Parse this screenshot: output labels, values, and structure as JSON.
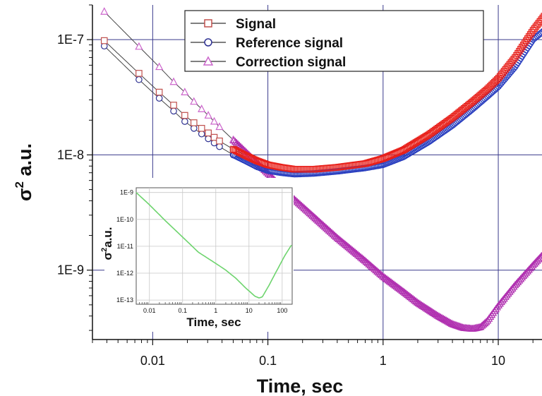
{
  "chart_data": [
    {
      "type": "scatter",
      "xscale": "log",
      "yscale": "log",
      "xlim": [
        0.003,
        25
      ],
      "ylim": [
        2.5e-10,
        2e-07
      ],
      "xlabel": "Time, sec",
      "ylabel_base": "σ",
      "ylabel_sup": "2",
      "ylabel_rest": " a.u.",
      "xticks": [
        {
          "value": 0.01,
          "label": "0.01"
        },
        {
          "value": 0.1,
          "label": "0.1"
        },
        {
          "value": 1,
          "label": "1"
        },
        {
          "value": 10,
          "label": "10"
        }
      ],
      "yticks": [
        {
          "value": 1e-07,
          "label": "1E-7"
        },
        {
          "value": 1e-08,
          "label": "1E-8"
        },
        {
          "value": 1e-09,
          "label": "1E-9"
        }
      ],
      "grid": true,
      "legend_position": "top",
      "series": [
        {
          "name": "Signal",
          "marker": "square",
          "color": "#c0504d",
          "dense_color": "#e8201a",
          "x": [
            0.0038,
            0.0076,
            0.0114,
            0.0152,
            0.019,
            0.0228,
            0.0266,
            0.0304,
            0.0342,
            0.038,
            0.05,
            0.065,
            0.08,
            0.1,
            0.13,
            0.17,
            0.25,
            0.4,
            0.7,
            1.0,
            1.5,
            2.5,
            4,
            6,
            8,
            10,
            14,
            20,
            25
          ],
          "y": [
            9.8e-08,
            5.1e-08,
            3.5e-08,
            2.7e-08,
            2.2e-08,
            1.9e-08,
            1.7e-08,
            1.55e-08,
            1.42e-08,
            1.32e-08,
            1.12e-08,
            9.8e-09,
            8.9e-09,
            8.2e-09,
            7.8e-09,
            7.5e-09,
            7.5e-09,
            7.8e-09,
            8.4e-09,
            9.3e-09,
            1.1e-08,
            1.5e-08,
            2.1e-08,
            2.9e-08,
            3.7e-08,
            4.6e-08,
            7e-08,
            1.2e-07,
            1.6e-07
          ]
        },
        {
          "name": "Reference signal",
          "marker": "circle",
          "color": "#2e3192",
          "dense_color": "#2a3fbf",
          "x": [
            0.0038,
            0.0076,
            0.0114,
            0.0152,
            0.019,
            0.0228,
            0.0266,
            0.0304,
            0.0342,
            0.038,
            0.05,
            0.065,
            0.08,
            0.1,
            0.13,
            0.17,
            0.25,
            0.4,
            0.7,
            1.0,
            1.5,
            2.5,
            4,
            6,
            8,
            10,
            14,
            20,
            25
          ],
          "y": [
            8.8e-08,
            4.5e-08,
            3.1e-08,
            2.4e-08,
            1.95e-08,
            1.7e-08,
            1.52e-08,
            1.38e-08,
            1.27e-08,
            1.18e-08,
            1e-08,
            8.8e-09,
            7.9e-09,
            7.3e-09,
            7e-09,
            6.8e-09,
            6.9e-09,
            7.2e-09,
            7.7e-09,
            8.2e-09,
            9.6e-09,
            1.3e-08,
            1.8e-08,
            2.5e-08,
            3.2e-08,
            3.9e-08,
            5.8e-08,
            1e-07,
            1.2e-07
          ]
        },
        {
          "name": "Correction signal",
          "marker": "triangle",
          "color": "#cc66cc",
          "dense_color": "#b030b0",
          "x": [
            0.0038,
            0.0076,
            0.0114,
            0.0152,
            0.019,
            0.0228,
            0.0266,
            0.0304,
            0.0342,
            0.038,
            0.05,
            0.065,
            0.08,
            0.1,
            0.13,
            0.17,
            0.25,
            0.4,
            0.7,
            1.0,
            1.5,
            2.0,
            3.0,
            4.0,
            5.0,
            6.0,
            7.0,
            8.0,
            10,
            14,
            20,
            25
          ],
          "y": [
            1.75e-07,
            8.7e-08,
            5.8e-08,
            4.3e-08,
            3.5e-08,
            2.9e-08,
            2.5e-08,
            2.2e-08,
            1.95e-08,
            1.75e-08,
            1.35e-08,
            1.05e-08,
            8.6e-09,
            6.9e-09,
            5.3e-09,
            4.1e-09,
            2.9e-09,
            1.9e-09,
            1.2e-09,
            8.8e-10,
            6.5e-10,
            5.2e-10,
            4e-10,
            3.4e-10,
            3.15e-10,
            3.1e-10,
            3.2e-10,
            3.6e-10,
            4.9e-10,
            7.4e-10,
            1.1e-09,
            1.4e-09
          ]
        }
      ]
    },
    {
      "type": "line",
      "xscale": "log",
      "yscale": "log",
      "xlim": [
        0.004,
        200
      ],
      "ylim": [
        7e-14,
        1.5e-09
      ],
      "xlabel": "Time, sec",
      "ylabel_base": "σ",
      "ylabel_sup": "2",
      "ylabel_rest": "a.u.",
      "xticks": [
        {
          "value": 0.01,
          "label": "0.01"
        },
        {
          "value": 0.1,
          "label": "0.1"
        },
        {
          "value": 1,
          "label": "1"
        },
        {
          "value": 10,
          "label": "10"
        },
        {
          "value": 100,
          "label": "100"
        }
      ],
      "yticks": [
        {
          "value": 1e-09,
          "label": "1E-9"
        },
        {
          "value": 1e-10,
          "label": "1E-10"
        },
        {
          "value": 1e-11,
          "label": "1E-11"
        },
        {
          "value": 1e-12,
          "label": "1E-12"
        },
        {
          "value": 1e-13,
          "label": "1E-13"
        }
      ],
      "grid": true,
      "series": [
        {
          "color": "#6ed46e",
          "x": [
            0.004,
            0.01,
            0.03,
            0.1,
            0.3,
            1,
            2,
            4,
            8,
            15,
            20,
            25,
            40,
            70,
            120,
            190
          ],
          "y": [
            1e-09,
            3.5e-10,
            9e-11,
            2.2e-11,
            6e-12,
            2.3e-12,
            1.3e-12,
            6.5e-13,
            2.8e-13,
            1.4e-13,
            1.2e-13,
            1.3e-13,
            3.5e-13,
            1.3e-12,
            4.5e-12,
            1.1e-11
          ]
        }
      ]
    }
  ]
}
